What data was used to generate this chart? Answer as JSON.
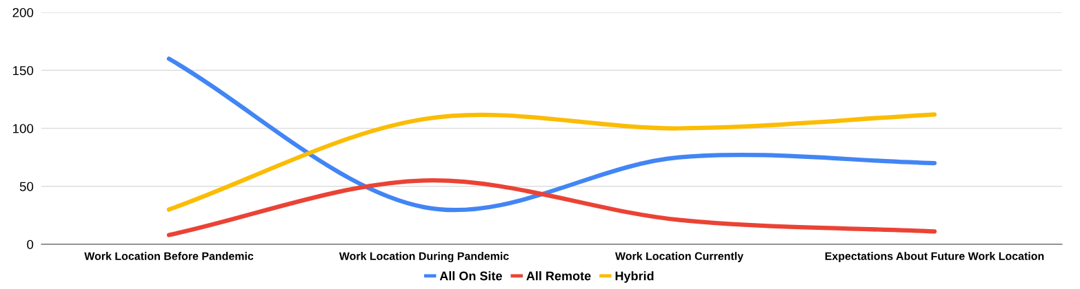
{
  "chart_data": {
    "type": "line",
    "categories": [
      "Work Location Before Pandemic",
      "Work Location During Pandemic",
      "Work Location Currently",
      "Expectations About Future Work Location"
    ],
    "series": [
      {
        "name": "All On Site",
        "color": "#4285f4",
        "values": [
          160,
          32,
          75,
          70
        ]
      },
      {
        "name": "All Remote",
        "color": "#ea4335",
        "values": [
          8,
          55,
          21,
          11
        ]
      },
      {
        "name": "Hybrid",
        "color": "#fbbc04",
        "values": [
          30,
          108,
          100,
          112
        ]
      }
    ],
    "ylim": [
      0,
      200
    ],
    "yticks": [
      0,
      50,
      100,
      150,
      200
    ],
    "grid": "y",
    "legend": "bottom",
    "line_style": "solid",
    "marker": "none"
  }
}
